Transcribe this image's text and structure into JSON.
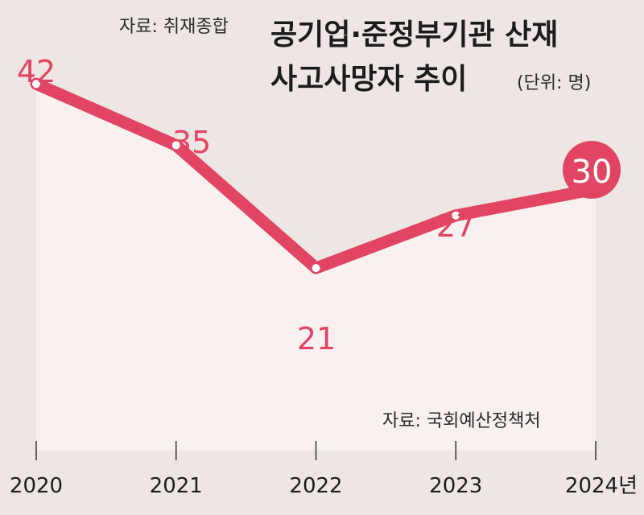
{
  "source_top": "자료: 취재종합",
  "source_bottom": "자료: 국회예산정책처",
  "chart_data": {
    "type": "line",
    "title_line1": "공기업·준정부기관 산재",
    "title_line2": "사고사망자 추이",
    "unit": "(단위: 명)",
    "x": [
      "2020",
      "2021",
      "2022",
      "2023",
      "2024년"
    ],
    "values": [
      42,
      35,
      21,
      27,
      30
    ],
    "ylim": [
      0,
      45
    ],
    "grid": false,
    "highlight_last": true,
    "colors": {
      "line": "#e14563",
      "area": "#f8f1f0",
      "background": "#ede6e4",
      "label": "#e14563",
      "highlight_text": "#ffffff"
    }
  }
}
